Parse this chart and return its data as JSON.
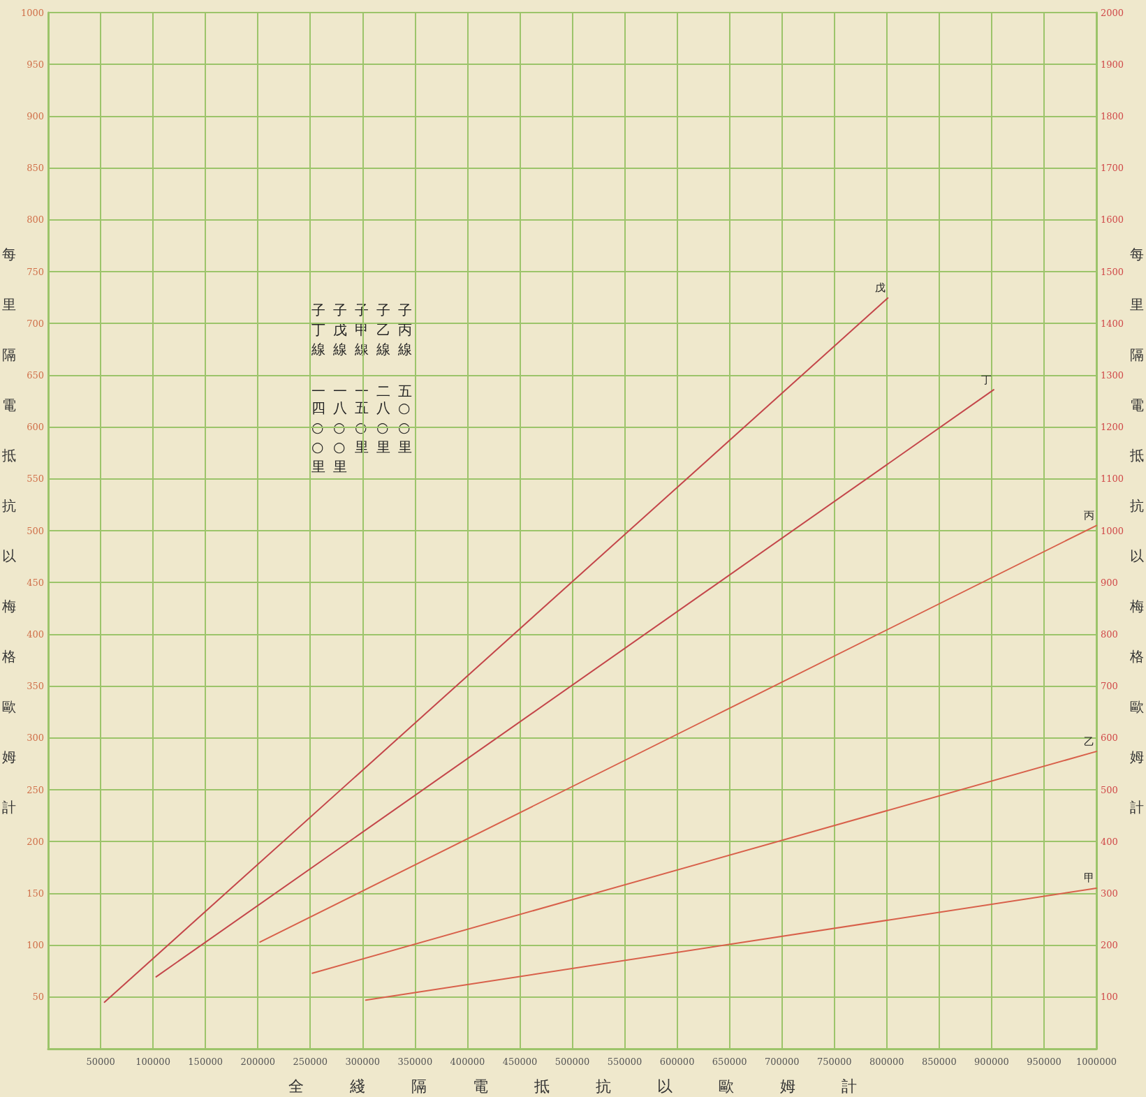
{
  "chart_data": {
    "type": "line",
    "xlabel": "全綫隔電抵抗以歐姆計",
    "ylabel": "每里隔電抵抗以梅格歐姆計",
    "y2label": "每里隔電抵抗以梅格歐姆計",
    "annotations": [
      "子丁線一四○○里",
      "子戊線一八○○里",
      "子甲線一五○里",
      "子乙線二八○里",
      "子丙線五○○里"
    ],
    "series": [
      {
        "name": "戊",
        "color": "#c4464a",
        "axis": "y2",
        "x": [
          53700,
          801000
        ],
        "values": [
          90,
          1449
        ]
      },
      {
        "name": "丁",
        "color": "#c4464a",
        "axis": "y2",
        "x": [
          103000,
          902000
        ],
        "values": [
          139,
          1272
        ]
      },
      {
        "name": "丙",
        "color": "#d8604a",
        "x": [
          202000,
          1000000
        ],
        "values": [
          103,
          505
        ]
      },
      {
        "name": "乙",
        "color": "#d8604a",
        "x": [
          252000,
          1000000
        ],
        "values": [
          73,
          287
        ]
      },
      {
        "name": "甲",
        "color": "#d8604a",
        "x": [
          303000,
          1000000
        ],
        "values": [
          47,
          155
        ]
      }
    ],
    "xlim": [
      0,
      1000000
    ],
    "xticks": [
      50000,
      100000,
      150000,
      200000,
      250000,
      300000,
      350000,
      400000,
      450000,
      500000,
      550000,
      600000,
      650000,
      700000,
      750000,
      800000,
      850000,
      900000,
      950000,
      1000000
    ],
    "ylim": [
      0,
      1000
    ],
    "yticks": [
      50,
      100,
      150,
      200,
      250,
      300,
      350,
      400,
      450,
      500,
      550,
      600,
      650,
      700,
      750,
      800,
      850,
      900,
      950,
      1000
    ],
    "y2lim": [
      0,
      2000
    ],
    "y2ticks": [
      100,
      200,
      300,
      400,
      500,
      600,
      700,
      800,
      900,
      1000,
      1100,
      1200,
      1300,
      1400,
      1500,
      1600,
      1700,
      1800,
      1900,
      2000
    ],
    "grid": true,
    "legend": false,
    "marker": "none",
    "line_style": "solid"
  }
}
